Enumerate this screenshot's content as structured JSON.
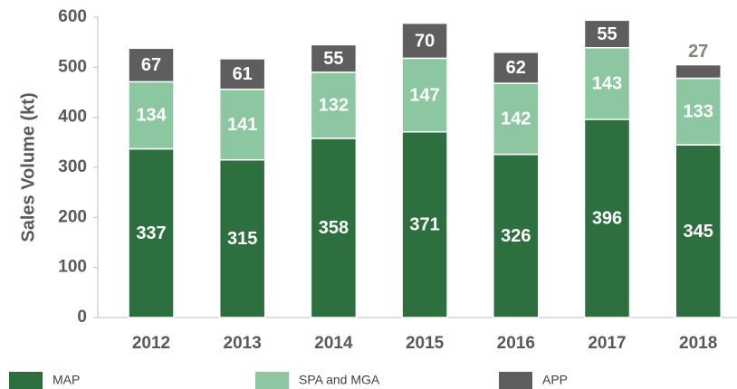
{
  "chart_data": {
    "type": "stacked_bar",
    "ylabel": "Sales Volume (kt)",
    "categories": [
      "2012",
      "2013",
      "2014",
      "2015",
      "2016",
      "2017",
      "2018"
    ],
    "series": [
      {
        "name": "MAP",
        "color": "#2e6f40",
        "values": [
          337,
          315,
          358,
          371,
          326,
          396,
          345
        ]
      },
      {
        "name": "SPA and MGA",
        "color": "#8dc7a1",
        "values": [
          134,
          141,
          132,
          147,
          142,
          143,
          133
        ]
      },
      {
        "name": "APP",
        "color": "#5e5e5e",
        "values": [
          67,
          61,
          55,
          70,
          62,
          55,
          27
        ]
      }
    ],
    "ylim": [
      0,
      600
    ],
    "yticks": [
      0,
      100,
      200,
      300,
      400,
      500,
      600
    ]
  }
}
